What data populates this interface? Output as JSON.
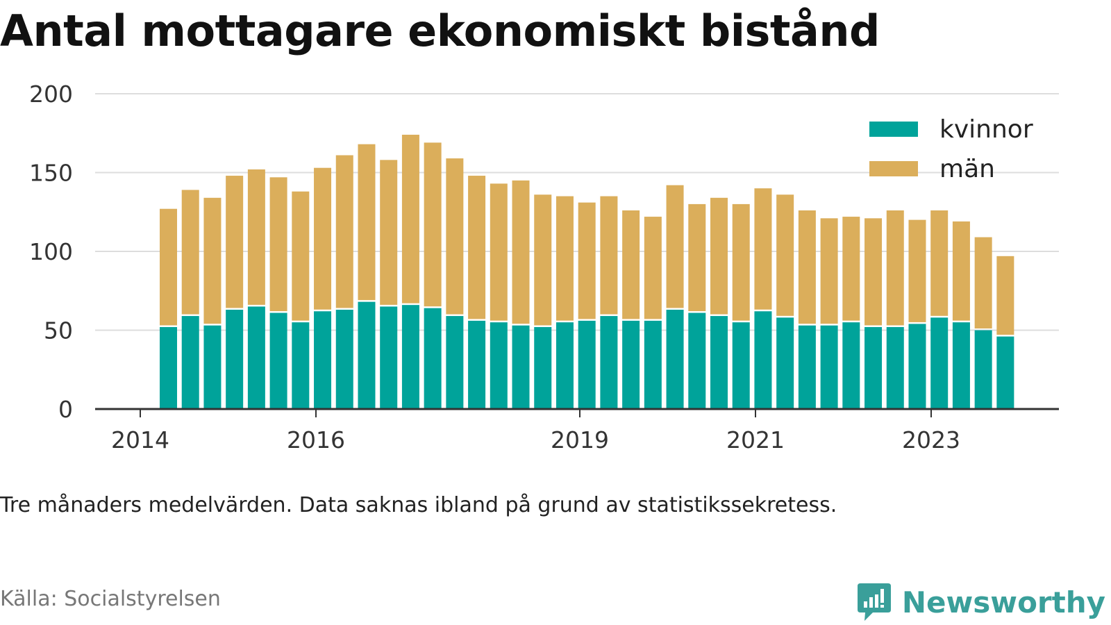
{
  "title": "Antal mottagare ekonomiskt bistånd",
  "note": "Tre månaders medelvärden. Data saknas ibland på grund av statistikssekretess.",
  "source": "Källa: Socialstyrelsen",
  "brand": "Newsworthy",
  "colors": {
    "kvinnor": "#00a39a",
    "man": "#dbae5b",
    "grid": "#dddddd",
    "axis": "#333333",
    "brand": "#3a9f9a"
  },
  "chart_data": {
    "type": "bar",
    "stacked": true,
    "yticks": [
      0,
      50,
      100,
      150,
      200
    ],
    "ylim": [
      0,
      200
    ],
    "xticks": [
      "2014",
      "2016",
      "2019",
      "2021",
      "2023"
    ],
    "legend": [
      "kvinnor",
      "män"
    ],
    "legend_position": "top-right",
    "grid": true,
    "series": [
      {
        "name": "kvinnor",
        "values": [
          52,
          59,
          53,
          63,
          65,
          61,
          55,
          62,
          63,
          68,
          65,
          66,
          64,
          59,
          56,
          55,
          53,
          52,
          55,
          56,
          59,
          56,
          56,
          63,
          61,
          59,
          55,
          62,
          58,
          53,
          53,
          55,
          52,
          52,
          54,
          58,
          55,
          50,
          46
        ]
      },
      {
        "name": "män",
        "values": [
          75,
          80,
          81,
          85,
          87,
          86,
          83,
          91,
          98,
          100,
          93,
          108,
          105,
          100,
          92,
          88,
          92,
          84,
          80,
          75,
          76,
          70,
          66,
          79,
          69,
          75,
          75,
          78,
          78,
          73,
          68,
          67,
          69,
          74,
          66,
          68,
          64,
          59,
          51
        ]
      }
    ]
  }
}
